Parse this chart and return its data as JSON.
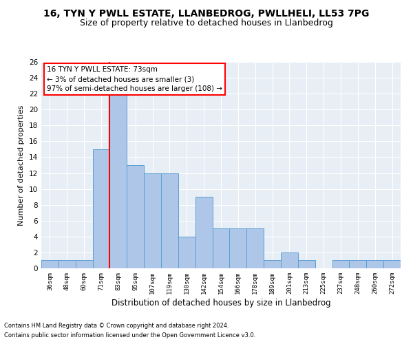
{
  "title1": "16, TYN Y PWLL ESTATE, LLANBEDROG, PWLLHELI, LL53 7PG",
  "title2": "Size of property relative to detached houses in Llanbedrog",
  "xlabel": "Distribution of detached houses by size in Llanbedrog",
  "ylabel": "Number of detached properties",
  "categories": [
    "36sqm",
    "48sqm",
    "60sqm",
    "71sqm",
    "83sqm",
    "95sqm",
    "107sqm",
    "119sqm",
    "130sqm",
    "142sqm",
    "154sqm",
    "166sqm",
    "178sqm",
    "189sqm",
    "201sqm",
    "213sqm",
    "225sqm",
    "237sqm",
    "248sqm",
    "260sqm",
    "272sqm"
  ],
  "values": [
    1,
    1,
    1,
    15,
    22,
    13,
    12,
    12,
    4,
    9,
    5,
    5,
    5,
    1,
    2,
    1,
    0,
    1,
    1,
    1,
    1
  ],
  "bar_color": "#aec6e8",
  "bar_edge_color": "#5a9fd4",
  "red_line_x": 3.5,
  "annotation_text": "16 TYN Y PWLL ESTATE: 73sqm\n← 3% of detached houses are smaller (3)\n97% of semi-detached houses are larger (108) →",
  "ylim": [
    0,
    26
  ],
  "yticks": [
    0,
    2,
    4,
    6,
    8,
    10,
    12,
    14,
    16,
    18,
    20,
    22,
    24,
    26
  ],
  "footnote1": "Contains HM Land Registry data © Crown copyright and database right 2024.",
  "footnote2": "Contains public sector information licensed under the Open Government Licence v3.0.",
  "bg_color": "#e8eef5",
  "grid_color": "#ffffff",
  "title1_fontsize": 10,
  "title2_fontsize": 9,
  "xlabel_fontsize": 8.5,
  "ylabel_fontsize": 8
}
